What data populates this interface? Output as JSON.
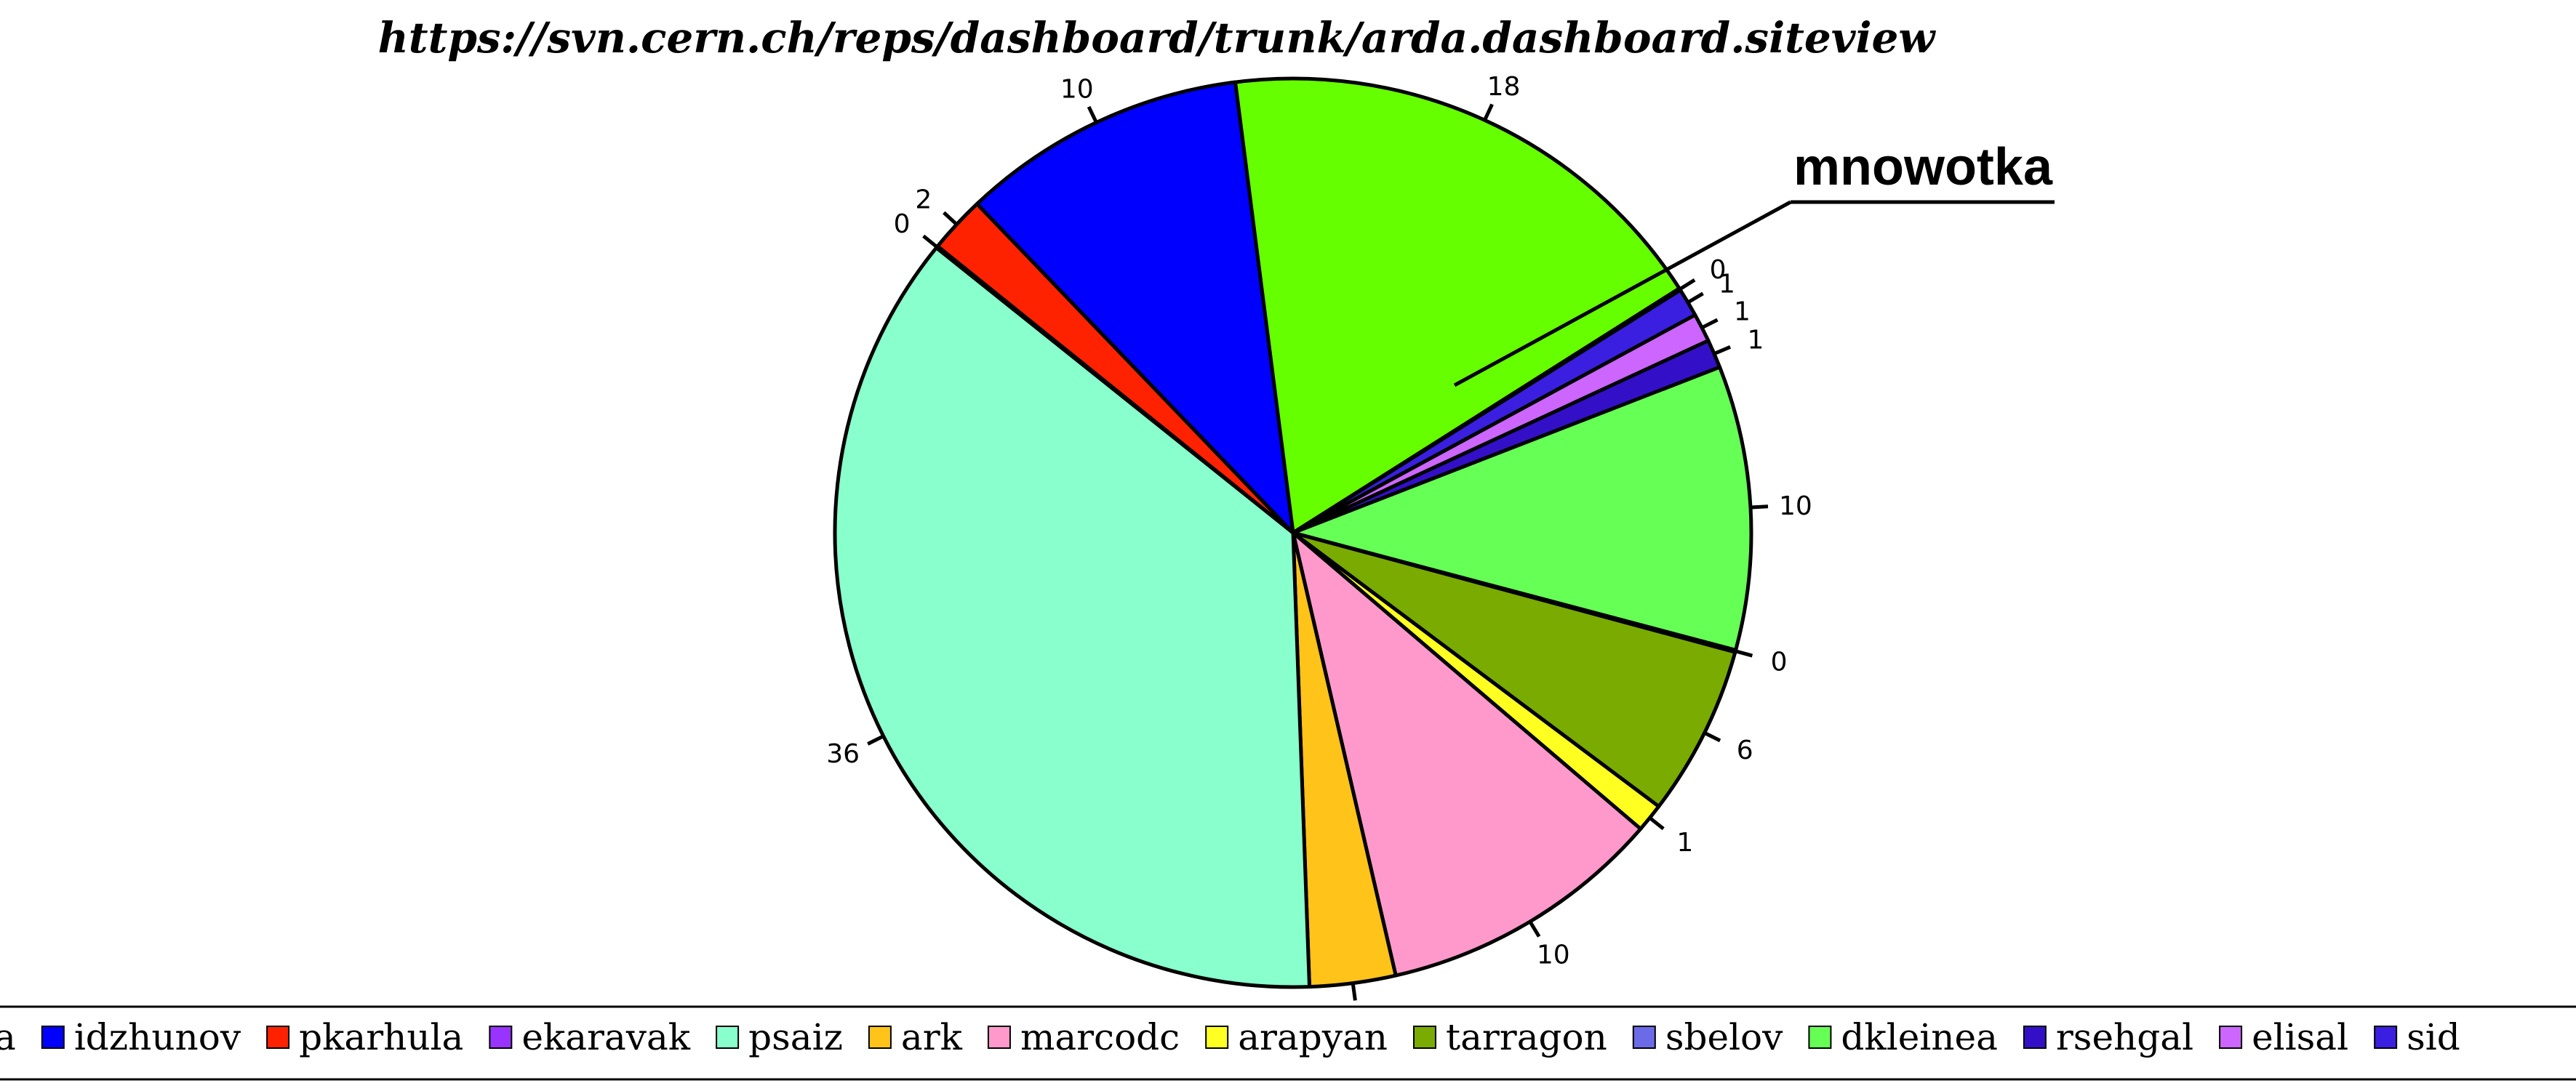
{
  "chart_data": {
    "type": "pie",
    "title": "https://svn.cern.ch/reps/dashboard/trunk/arda.dashboard.siteview",
    "series": [
      {
        "name": "mnowotka",
        "value": 18,
        "label": "18",
        "color": "#66ff00"
      },
      {
        "name": "",
        "value": 0,
        "label": "0",
        "color": "#3300cc"
      },
      {
        "name": "sid",
        "value": 1,
        "label": "1",
        "color": "#3a1fe0"
      },
      {
        "name": "elisal",
        "value": 1,
        "label": "1",
        "color": "#cc66ff"
      },
      {
        "name": "rsehgal",
        "value": 1,
        "label": "1",
        "color": "#3310c8"
      },
      {
        "name": "dkleinea",
        "value": 10,
        "label": "10",
        "color": "#66ff55"
      },
      {
        "name": "sbelov",
        "value": 0,
        "label": "0",
        "color": "#6b6be8"
      },
      {
        "name": "tarragon",
        "value": 6,
        "label": "6",
        "color": "#7aab00"
      },
      {
        "name": "arapyan",
        "value": 1,
        "label": "1",
        "color": "#ffff22"
      },
      {
        "name": "marcodc",
        "value": 10,
        "label": "10",
        "color": "#ff99cc"
      },
      {
        "name": "ark",
        "value": 3,
        "label": "3",
        "color": "#ffc31a"
      },
      {
        "name": "psaiz",
        "value": 36,
        "label": "36",
        "color": "#88ffcc"
      },
      {
        "name": "ekaravak",
        "value": 0,
        "label": "0",
        "color": "#9933ff"
      },
      {
        "name": "pkarhula",
        "value": 2,
        "label": "2",
        "color": "#ff2200"
      },
      {
        "name": "idzhunov",
        "value": 10,
        "label": "10",
        "color": "#0000ff"
      }
    ],
    "legend": {
      "placement": "bottom",
      "items": [
        {
          "label": "a",
          "color": "#ffffff"
        },
        {
          "label": "idzhunov",
          "color": "#0000ff"
        },
        {
          "label": "pkarhula",
          "color": "#ff2200"
        },
        {
          "label": "ekaravak",
          "color": "#9933ff"
        },
        {
          "label": "psaiz",
          "color": "#88ffcc"
        },
        {
          "label": "ark",
          "color": "#ffc31a"
        },
        {
          "label": "marcodc",
          "color": "#ff99cc"
        },
        {
          "label": "arapyan",
          "color": "#ffff22"
        },
        {
          "label": "tarragon",
          "color": "#7aab00"
        },
        {
          "label": "sbelov",
          "color": "#6b6be8"
        },
        {
          "label": "dkleinea",
          "color": "#66ff55"
        },
        {
          "label": "rsehgal",
          "color": "#3310c8"
        },
        {
          "label": "elisal",
          "color": "#cc66ff"
        },
        {
          "label": "sid",
          "color": "#3a1fe0"
        }
      ]
    },
    "annotation": {
      "text": "mnowotka",
      "target": "mnowotka"
    }
  }
}
